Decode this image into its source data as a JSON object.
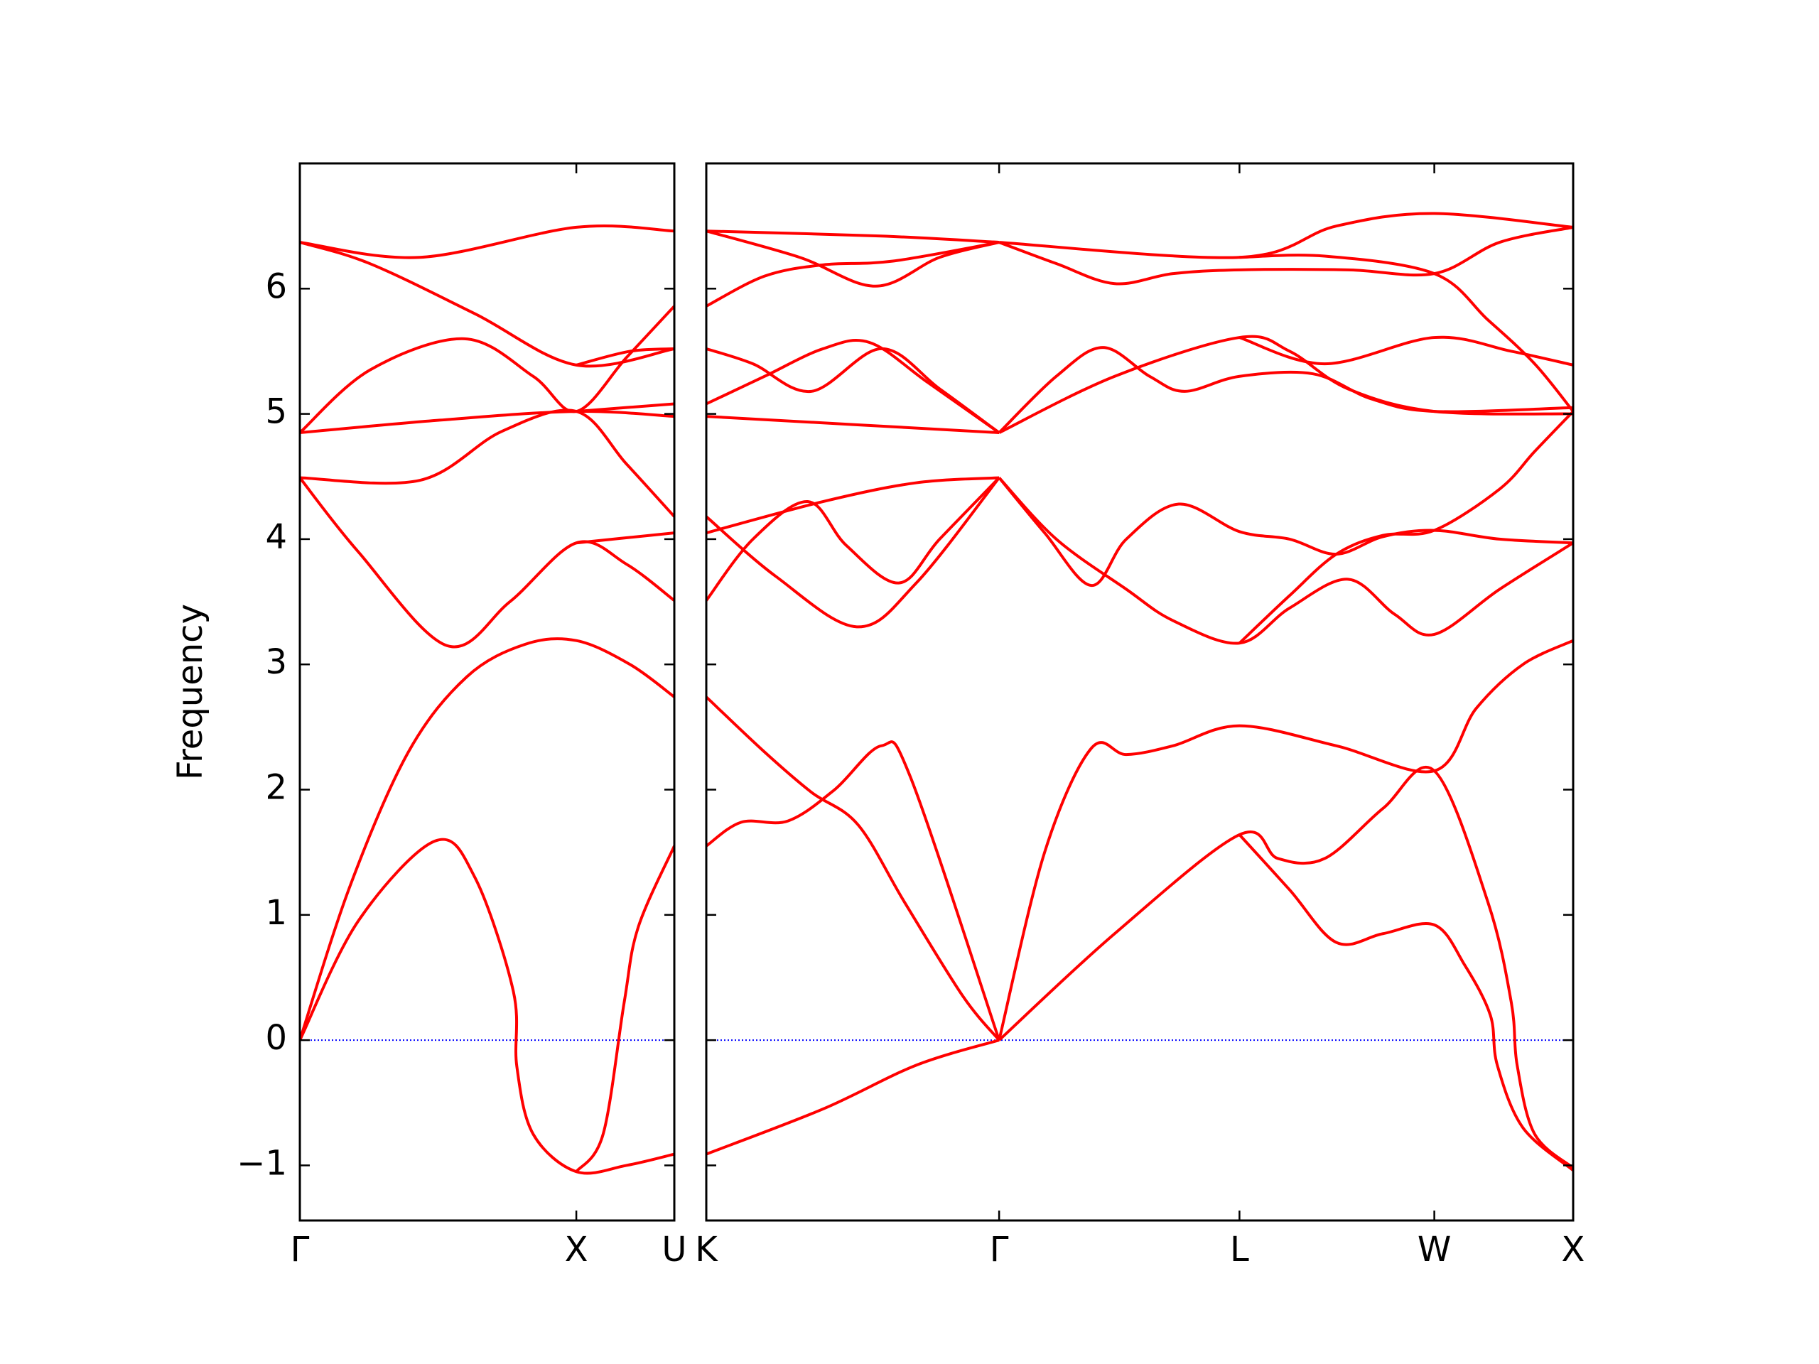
{
  "chart_data": [
    {
      "type": "line",
      "ylabel": "Frequency",
      "color": "#ff0000",
      "xlim": [
        0,
        3.21
      ],
      "ylim": [
        -1.44,
        7.0
      ],
      "xticks": [
        {
          "value": 0,
          "label": "Γ"
        },
        {
          "value": 2.37,
          "label": "X"
        },
        {
          "value": 3.21,
          "label": "U"
        }
      ],
      "yticks": [
        {
          "value": -1,
          "label": "−1"
        },
        0,
        1,
        2,
        3,
        4,
        5,
        6
      ],
      "ytick_labels": true,
      "zero_line": {
        "value": 0,
        "color": "#0000ff",
        "style": "dotted"
      },
      "series": [
        {
          "x": [
            0,
            0.5,
            1.16,
            1.5,
            1.83,
            1.86,
            2.0,
            2.37,
            2.8,
            3.21
          ],
          "values": [
            0,
            0.95,
            1.59,
            1.3,
            0.39,
            -0.21,
            -0.75,
            -1.05,
            -1.0,
            -0.91
          ]
        },
        {
          "x": [
            2.37,
            2.6,
            2.78,
            2.9,
            3.21
          ],
          "values": [
            -1.05,
            -0.75,
            0.3,
            0.9,
            1.55
          ]
        },
        {
          "x": [
            0,
            0.43,
            0.93,
            1.43,
            1.93,
            2.37,
            2.83,
            3.21
          ],
          "values": [
            0,
            1.23,
            2.3,
            2.9,
            3.16,
            3.19,
            3.0,
            2.74
          ]
        },
        {
          "x": [
            0,
            0.5,
            1.26,
            1.8,
            2.37,
            2.8,
            3.21
          ],
          "values": [
            4.49,
            3.9,
            3.15,
            3.5,
            3.97,
            3.8,
            3.51
          ]
        },
        {
          "x": [
            2.37,
            3.21
          ],
          "values": [
            3.97,
            4.05
          ]
        },
        {
          "x": [
            0,
            1.03,
            1.73,
            2.37,
            2.8,
            3.21
          ],
          "values": [
            4.49,
            4.47,
            4.86,
            5.02,
            4.6,
            4.18
          ]
        },
        {
          "x": [
            0,
            1.2,
            2.37,
            3.21
          ],
          "values": [
            4.85,
            4.95,
            5.02,
            4.98
          ]
        },
        {
          "x": [
            0,
            0.6,
            1.41,
            2.0,
            2.37,
            2.8,
            3.21
          ],
          "values": [
            4.85,
            5.35,
            5.6,
            5.3,
            5.02,
            5.45,
            5.86
          ]
        },
        {
          "x": [
            2.37,
            3.21
          ],
          "values": [
            5.02,
            5.08
          ]
        },
        {
          "x": [
            2.37,
            2.83,
            3.21
          ],
          "values": [
            5.39,
            5.5,
            5.52
          ]
        },
        {
          "x": [
            0,
            1.03,
            2.37,
            3.21
          ],
          "values": [
            6.37,
            6.25,
            6.49,
            6.46
          ]
        },
        {
          "x": [
            0,
            0.6,
            1.5,
            2.37,
            3.21
          ],
          "values": [
            6.37,
            6.2,
            5.8,
            5.39,
            5.52
          ]
        }
      ]
    },
    {
      "type": "line",
      "color": "#ff0000",
      "xlim": [
        0,
        7.43
      ],
      "ylim": [
        -1.44,
        7.0
      ],
      "xticks": [
        {
          "value": 0,
          "label": "K"
        },
        {
          "value": 2.51,
          "label": "Γ"
        },
        {
          "value": 4.57,
          "label": "L"
        },
        {
          "value": 6.24,
          "label": "W"
        },
        {
          "value": 7.43,
          "label": "X"
        }
      ],
      "yticks": [
        -1,
        0,
        1,
        2,
        3,
        4,
        5,
        6
      ],
      "ytick_labels": false,
      "zero_line": {
        "value": 0,
        "color": "#0000ff",
        "style": "dotted"
      },
      "series": [
        {
          "x": [
            0,
            1.0,
            1.8,
            2.51
          ],
          "values": [
            -0.91,
            -0.55,
            -0.2,
            0
          ]
        },
        {
          "x": [
            0,
            0.5,
            0.9,
            1.3,
            1.7,
            2.2,
            2.51
          ],
          "values": [
            2.74,
            2.3,
            1.98,
            1.72,
            1.1,
            0.35,
            0
          ]
        },
        {
          "x": [
            0,
            0.3,
            0.7,
            1.1,
            1.5,
            1.75,
            2.51
          ],
          "values": [
            1.55,
            1.74,
            1.75,
            2.0,
            2.35,
            2.1,
            0
          ]
        },
        {
          "x": [
            2.51,
            2.9,
            3.3,
            3.6,
            4.0,
            4.57,
            5.4,
            6.24,
            6.6,
            7.0,
            7.43
          ],
          "values": [
            0,
            1.5,
            2.33,
            2.28,
            2.35,
            2.51,
            2.35,
            2.15,
            2.65,
            3.0,
            3.19
          ]
        },
        {
          "x": [
            2.51,
            3.5,
            4.57,
            4.9,
            5.3,
            5.8,
            6.24,
            6.7,
            6.9,
            6.95,
            7.1,
            7.43
          ],
          "values": [
            0,
            0.85,
            1.64,
            1.45,
            1.45,
            1.85,
            2.15,
            1.1,
            0.3,
            -0.2,
            -0.75,
            -1.02
          ]
        },
        {
          "x": [
            4.57,
            5.0,
            5.4,
            5.8,
            6.24,
            6.5,
            6.72,
            6.78,
            7.0,
            7.43
          ],
          "values": [
            1.64,
            1.2,
            0.78,
            0.85,
            0.92,
            0.6,
            0.2,
            -0.2,
            -0.7,
            -1.04
          ]
        },
        {
          "x": [
            0,
            0.4,
            0.87,
            1.2,
            1.65,
            2.0,
            2.51
          ],
          "values": [
            3.51,
            4.0,
            4.3,
            3.95,
            3.65,
            4.0,
            4.49
          ]
        },
        {
          "x": [
            0,
            0.6,
            1.29,
            1.8,
            2.51
          ],
          "values": [
            4.18,
            3.7,
            3.3,
            3.65,
            4.49
          ]
        },
        {
          "x": [
            0,
            1.0,
            1.8,
            2.51
          ],
          "values": [
            4.05,
            4.3,
            4.45,
            4.49
          ]
        },
        {
          "x": [
            2.51,
            2.9,
            3.3,
            3.6,
            4.05,
            4.57,
            5.0,
            5.4,
            5.8,
            6.24,
            6.8,
            7.43
          ],
          "values": [
            4.49,
            4.05,
            3.63,
            4.0,
            4.28,
            4.06,
            4.0,
            3.88,
            4.02,
            4.07,
            4.0,
            3.97
          ]
        },
        {
          "x": [
            2.51,
            3.0,
            3.6,
            4.0,
            4.57,
            5.0,
            5.5,
            5.9,
            6.24,
            6.8,
            7.43
          ],
          "values": [
            4.49,
            4.0,
            3.6,
            3.35,
            3.17,
            3.45,
            3.68,
            3.4,
            3.24,
            3.6,
            3.97
          ]
        },
        {
          "x": [
            4.57,
            5.0,
            5.4,
            5.8,
            6.24,
            6.8,
            7.1,
            7.43
          ],
          "values": [
            3.17,
            3.55,
            3.88,
            4.03,
            4.07,
            4.4,
            4.7,
            5.02
          ]
        },
        {
          "x": [
            0,
            2.51
          ],
          "values": [
            4.98,
            4.85
          ]
        },
        {
          "x": [
            0,
            0.5,
            1.0,
            1.4,
            1.9,
            2.51
          ],
          "values": [
            5.08,
            5.3,
            5.52,
            5.57,
            5.25,
            4.85
          ]
        },
        {
          "x": [
            0,
            0.4,
            0.9,
            1.5,
            2.0,
            2.51
          ],
          "values": [
            5.52,
            5.4,
            5.18,
            5.52,
            5.2,
            4.85
          ]
        },
        {
          "x": [
            2.51,
            3.0,
            3.4,
            3.8,
            4.1,
            4.57,
            5.2,
            5.7,
            6.24,
            7.43
          ],
          "values": [
            4.85,
            5.3,
            5.53,
            5.3,
            5.18,
            5.3,
            5.32,
            5.12,
            5.02,
            5.05
          ]
        },
        {
          "x": [
            2.51,
            3.5,
            4.57,
            5.0,
            5.5,
            6.24,
            7.43
          ],
          "values": [
            4.85,
            5.3,
            5.61,
            5.5,
            5.2,
            5.02,
            5.0
          ]
        },
        {
          "x": [
            4.57,
            5.3,
            6.24,
            6.9,
            7.43
          ],
          "values": [
            5.61,
            5.4,
            5.61,
            5.5,
            5.39
          ]
        },
        {
          "x": [
            0,
            0.5,
            1.0,
            1.6,
            2.51
          ],
          "values": [
            5.86,
            6.1,
            6.19,
            6.22,
            6.37
          ]
        },
        {
          "x": [
            0,
            0.8,
            1.45,
            2.0,
            2.51
          ],
          "values": [
            6.46,
            6.25,
            6.02,
            6.25,
            6.37
          ]
        },
        {
          "x": [
            0,
            1.5,
            2.51
          ],
          "values": [
            6.46,
            6.42,
            6.37
          ]
        },
        {
          "x": [
            2.51,
            3.0,
            3.5,
            4.0,
            4.57,
            5.5,
            6.24,
            6.8,
            7.43
          ],
          "values": [
            6.37,
            6.2,
            6.04,
            6.12,
            6.15,
            6.15,
            6.12,
            6.37,
            6.49
          ]
        },
        {
          "x": [
            2.51,
            4.57,
            5.4,
            6.24,
            7.43
          ],
          "values": [
            6.37,
            6.25,
            6.5,
            6.6,
            6.49
          ]
        },
        {
          "x": [
            4.57,
            5.3,
            6.24,
            6.7,
            7.1,
            7.43
          ],
          "values": [
            6.25,
            6.26,
            6.12,
            5.75,
            5.4,
            5.02
          ]
        }
      ]
    }
  ]
}
